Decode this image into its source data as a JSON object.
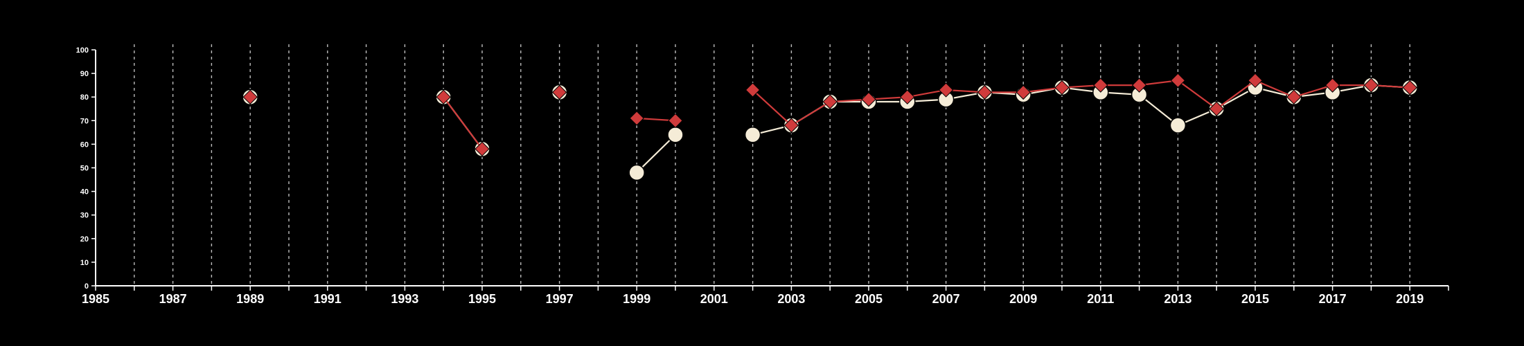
{
  "chart_data": {
    "type": "line",
    "title": "",
    "xlabel": "",
    "ylabel": "",
    "xlim": [
      1985,
      2020
    ],
    "ylim": [
      0,
      100
    ],
    "y_ticks": [
      0,
      10,
      20,
      30,
      40,
      50,
      60,
      70,
      80,
      90,
      100
    ],
    "x_ticks": [
      1985,
      1987,
      1989,
      1991,
      1993,
      1995,
      1997,
      1999,
      2001,
      2003,
      2005,
      2007,
      2009,
      2011,
      2013,
      2015,
      2017,
      2019
    ],
    "grid": "vertical dashed, every year",
    "legend": "none",
    "series": [
      {
        "color": "#f5ecd7",
        "marker": "circle",
        "segments": [
          [
            [
              1989,
              80
            ]
          ],
          [
            [
              1994,
              80
            ],
            [
              1995,
              58
            ]
          ],
          [
            [
              1997,
              82
            ]
          ],
          [
            [
              1999,
              48
            ],
            [
              2000,
              64
            ]
          ],
          [
            [
              2002,
              64
            ],
            [
              2003,
              68
            ],
            [
              2004,
              78
            ],
            [
              2005,
              78
            ],
            [
              2006,
              78
            ],
            [
              2007,
              79
            ],
            [
              2008,
              82
            ],
            [
              2009,
              81
            ],
            [
              2010,
              84
            ],
            [
              2011,
              82
            ],
            [
              2012,
              81
            ],
            [
              2013,
              68
            ],
            [
              2014,
              75
            ],
            [
              2015,
              84
            ],
            [
              2016,
              80
            ],
            [
              2017,
              82
            ],
            [
              2018,
              85
            ],
            [
              2019,
              84
            ]
          ]
        ]
      },
      {
        "color": "#d03b3b",
        "marker": "diamond",
        "segments": [
          [
            [
              1989,
              80
            ]
          ],
          [
            [
              1994,
              80
            ],
            [
              1995,
              58
            ]
          ],
          [
            [
              1997,
              82
            ]
          ],
          [
            [
              1999,
              71
            ],
            [
              2000,
              70
            ]
          ],
          [
            [
              2002,
              83
            ],
            [
              2003,
              68
            ],
            [
              2004,
              78
            ],
            [
              2005,
              79
            ],
            [
              2006,
              80
            ],
            [
              2007,
              83
            ],
            [
              2008,
              82
            ],
            [
              2009,
              82
            ],
            [
              2010,
              84
            ],
            [
              2011,
              85
            ],
            [
              2012,
              85
            ],
            [
              2013,
              87
            ],
            [
              2014,
              75
            ],
            [
              2015,
              87
            ],
            [
              2016,
              80
            ],
            [
              2017,
              85
            ],
            [
              2018,
              85
            ],
            [
              2019,
              84
            ]
          ]
        ]
      }
    ]
  }
}
